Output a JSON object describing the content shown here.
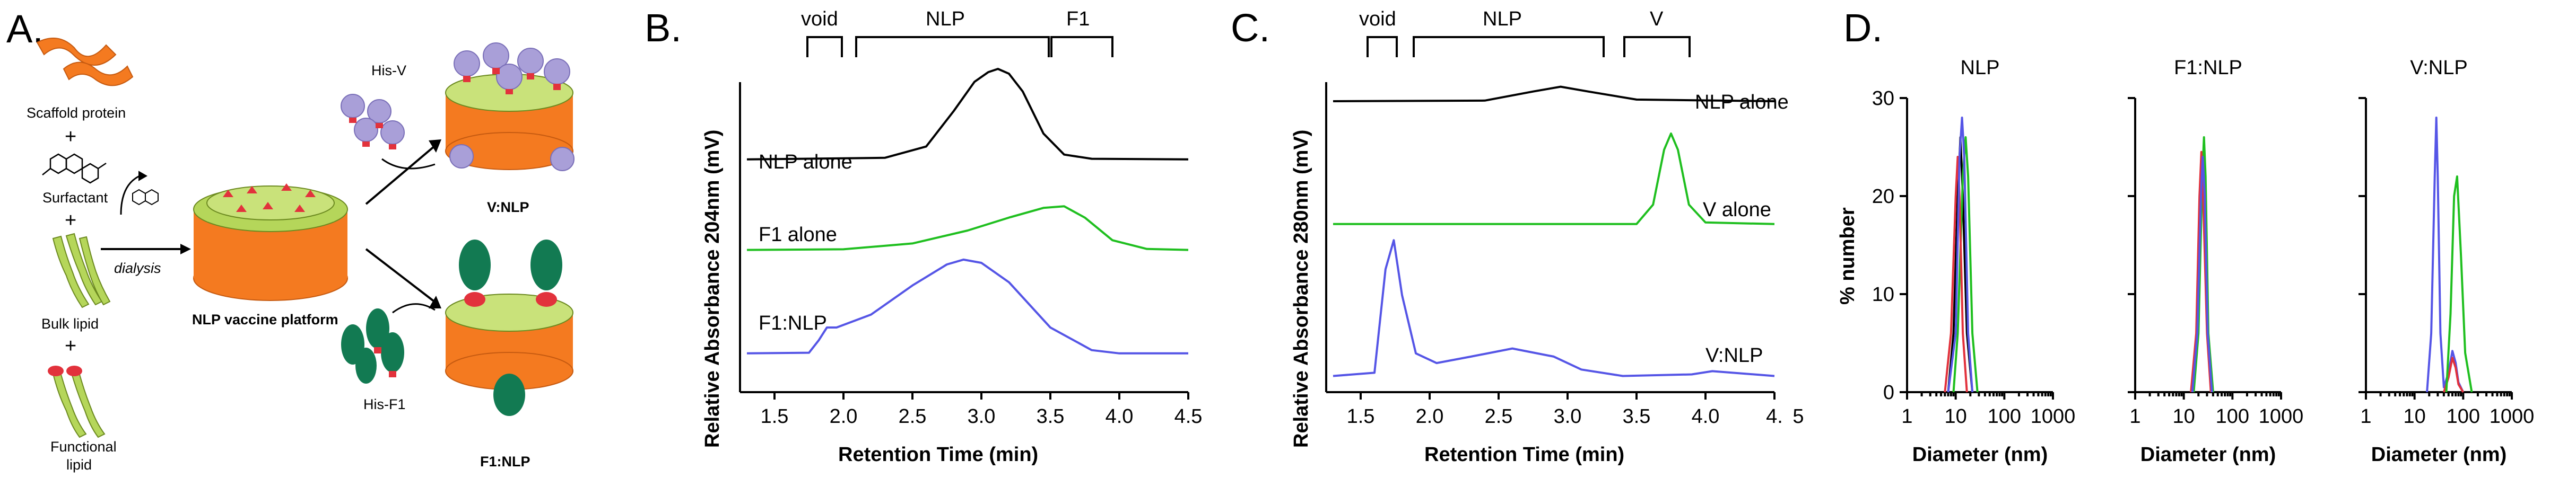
{
  "panels": {
    "A": {
      "letter": "A.",
      "components": {
        "scaffold": "Scaffold protein",
        "surfactant": "Surfactant",
        "bulk_lipid": "Bulk lipid",
        "functional_lipid_1": "Functional",
        "functional_lipid_2": "lipid",
        "plus": "+"
      },
      "process": "dialysis",
      "platform": "NLP vaccine platform",
      "his_v": "His-V",
      "his_f1": "His-F1",
      "product_v": "V:NLP",
      "product_f1": "F1:NLP"
    },
    "B": {
      "letter": "B.",
      "ylabel": "Relative Absorbance 204nm (mV)",
      "xlabel": "Retention Time (min)",
      "fractions": [
        "void",
        "NLP",
        "F1"
      ],
      "trace_labels": [
        "NLP alone",
        "F1 alone",
        "F1:NLP"
      ],
      "ticks": [
        "1.5",
        "2.0",
        "2.5",
        "3.0",
        "3.5",
        "4.0",
        "4.5"
      ]
    },
    "C": {
      "letter": "C.",
      "ylabel": "Relative Absorbance 280nm (mV)",
      "xlabel": "Retention Time (min)",
      "fractions": [
        "void",
        "NLP",
        "V"
      ],
      "trace_labels": [
        "NLP alone",
        "V alone",
        "V:NLP"
      ],
      "ticks": [
        "1.5",
        "2.0",
        "2.5",
        "3.0",
        "3.5",
        "4.0",
        "4.",
        "5"
      ]
    },
    "D": {
      "letter": "D.",
      "ylabel": "% number",
      "xlabel": "Diameter (nm)",
      "subplot_titles": [
        "NLP",
        "F1:NLP",
        "V:NLP"
      ],
      "yticks": [
        "0",
        "10",
        "20",
        "30"
      ],
      "xticks": [
        "1",
        "10",
        "100",
        "1000"
      ]
    }
  },
  "colors": {
    "black": "#000000",
    "green": "#1fbf1f",
    "blue": "#5555e6",
    "red": "#e2323c",
    "orange": "#f47a20",
    "lime": "#b5d65a",
    "purple": "#a99fd8",
    "teal": "#127a52"
  },
  "chart_data": [
    {
      "type": "line",
      "title": "",
      "xlabel": "Retention Time (min)",
      "ylabel": "Relative Absorbance 204nm (mV)",
      "xlim": [
        1.25,
        4.5
      ],
      "ylim": [
        0,
        1
      ],
      "series": [
        {
          "name": "NLP alone",
          "color": "#000000",
          "x": [
            1.3,
            2.3,
            2.6,
            2.8,
            2.95,
            3.05,
            3.12,
            3.2,
            3.3,
            3.45,
            3.6,
            3.8,
            4.5
          ],
          "y": [
            0.72,
            0.725,
            0.76,
            0.87,
            0.96,
            0.99,
            1.0,
            0.985,
            0.93,
            0.8,
            0.735,
            0.722,
            0.72
          ]
        },
        {
          "name": "F1 alone",
          "color": "#1fbf1f",
          "x": [
            1.3,
            2.0,
            2.5,
            2.9,
            3.2,
            3.45,
            3.6,
            3.75,
            3.95,
            4.2,
            4.5
          ],
          "y": [
            0.44,
            0.442,
            0.46,
            0.5,
            0.54,
            0.57,
            0.575,
            0.54,
            0.47,
            0.443,
            0.44
          ]
        },
        {
          "name": "F1:NLP",
          "color": "#5555e6",
          "x": [
            1.3,
            1.75,
            1.82,
            1.88,
            1.95,
            2.2,
            2.5,
            2.75,
            2.87,
            3.0,
            3.2,
            3.5,
            3.8,
            4.0,
            4.5
          ],
          "y": [
            0.12,
            0.122,
            0.16,
            0.2,
            0.2,
            0.24,
            0.33,
            0.395,
            0.41,
            0.4,
            0.34,
            0.2,
            0.13,
            0.12,
            0.12
          ]
        }
      ]
    },
    {
      "type": "line",
      "title": "",
      "xlabel": "Retention Time (min)",
      "ylabel": "Relative Absorbance 280nm (mV)",
      "xlim": [
        1.25,
        4.5
      ],
      "ylim": [
        0,
        1
      ],
      "series": [
        {
          "name": "NLP alone",
          "color": "#000000",
          "x": [
            1.3,
            2.4,
            2.75,
            2.95,
            3.15,
            3.5,
            4.5
          ],
          "y": [
            0.9,
            0.902,
            0.93,
            0.945,
            0.93,
            0.905,
            0.9
          ]
        },
        {
          "name": "V alone",
          "color": "#1fbf1f",
          "x": [
            1.3,
            3.5,
            3.62,
            3.7,
            3.75,
            3.8,
            3.88,
            4.0,
            4.5
          ],
          "y": [
            0.52,
            0.52,
            0.58,
            0.75,
            0.8,
            0.75,
            0.58,
            0.525,
            0.52
          ]
        },
        {
          "name": "V:NLP",
          "color": "#5555e6",
          "x": [
            1.3,
            1.6,
            1.68,
            1.74,
            1.8,
            1.9,
            2.05,
            2.3,
            2.6,
            2.9,
            3.1,
            3.4,
            3.9,
            4.05,
            4.5
          ],
          "y": [
            0.05,
            0.06,
            0.38,
            0.47,
            0.3,
            0.12,
            0.09,
            0.11,
            0.135,
            0.11,
            0.07,
            0.05,
            0.055,
            0.065,
            0.05
          ]
        }
      ]
    },
    {
      "type": "line",
      "title": "NLP",
      "xlabel": "Diameter (nm)",
      "ylabel": "% number",
      "xscale": "log",
      "xlim": [
        1,
        1000
      ],
      "ylim": [
        0,
        30
      ],
      "series": [
        {
          "name": "black",
          "color": "#000000",
          "x": [
            7,
            9,
            11,
            12.5,
            14,
            17,
            22
          ],
          "y": [
            0,
            6,
            20,
            26,
            20,
            6,
            0
          ]
        },
        {
          "name": "green",
          "color": "#1fbf1f",
          "x": [
            9,
            11,
            14,
            16,
            18,
            22,
            28
          ],
          "y": [
            0,
            6,
            22,
            26,
            22,
            6,
            0
          ]
        },
        {
          "name": "red",
          "color": "#e2323c",
          "x": [
            6,
            8,
            10,
            11,
            12,
            14,
            17
          ],
          "y": [
            0,
            6,
            20,
            24,
            20,
            6,
            0
          ]
        },
        {
          "name": "blue",
          "color": "#5555e6",
          "x": [
            7,
            10,
            12,
            13.5,
            15,
            18,
            22
          ],
          "y": [
            0,
            6,
            24,
            28,
            24,
            6,
            0
          ]
        }
      ]
    },
    {
      "type": "line",
      "title": "F1:NLP",
      "xlabel": "Diameter (nm)",
      "ylabel": "% number",
      "xscale": "log",
      "xlim": [
        1,
        1000
      ],
      "ylim": [
        0,
        30
      ],
      "series": [
        {
          "name": "green",
          "color": "#1fbf1f",
          "x": [
            16,
            20,
            24,
            26,
            28,
            32,
            40
          ],
          "y": [
            0,
            6,
            22,
            26,
            22,
            6,
            0
          ]
        },
        {
          "name": "red",
          "color": "#e2323c",
          "x": [
            14,
            18,
            21,
            23,
            25,
            30,
            36
          ],
          "y": [
            0,
            6,
            20,
            24.5,
            20,
            6,
            0
          ]
        },
        {
          "name": "blue",
          "color": "#5555e6",
          "x": [
            15,
            19,
            22.5,
            24.5,
            27,
            31,
            38
          ],
          "y": [
            0,
            6,
            20,
            24,
            20,
            6,
            0
          ]
        }
      ]
    },
    {
      "type": "line",
      "title": "V:NLP",
      "xlabel": "Diameter (nm)",
      "ylabel": "% number",
      "xscale": "log",
      "xlim": [
        1,
        1000
      ],
      "ylim": [
        0,
        30
      ],
      "series": [
        {
          "name": "blue",
          "color": "#5555e6",
          "x": [
            18,
            22,
            26,
            28,
            30,
            34,
            40,
            50,
            60,
            70,
            80,
            100
          ],
          "y": [
            0,
            6,
            22,
            28,
            22,
            6,
            0.5,
            2,
            4.2,
            3,
            1,
            0
          ]
        },
        {
          "name": "red",
          "color": "#e2323c",
          "x": [
            40,
            50,
            60,
            70,
            80,
            100
          ],
          "y": [
            0,
            1.5,
            3.5,
            2.5,
            0.8,
            0
          ]
        },
        {
          "name": "green",
          "color": "#1fbf1f",
          "x": [
            45,
            55,
            65,
            75,
            90,
            110,
            150
          ],
          "y": [
            0,
            8,
            20,
            22,
            14,
            4,
            0
          ]
        }
      ]
    }
  ]
}
